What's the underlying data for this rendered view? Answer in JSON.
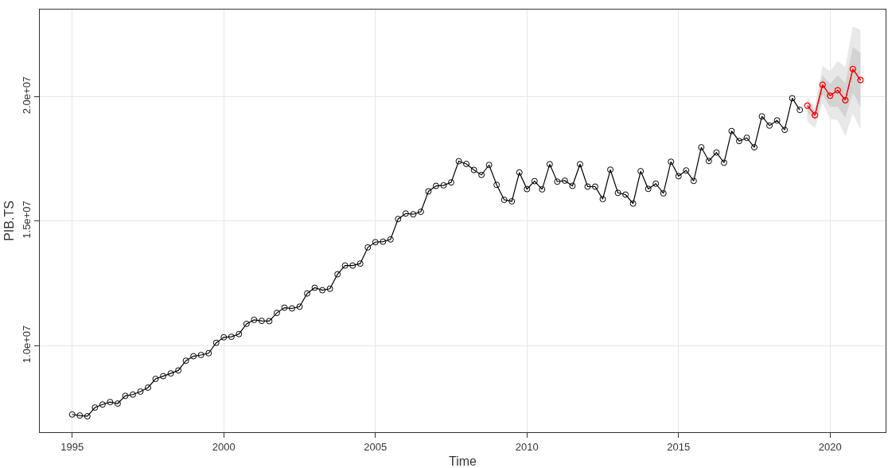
{
  "chart_data": {
    "type": "line",
    "xlabel": "Time",
    "ylabel": "PIB.TS",
    "xlim": [
      1993.93,
      2021.83
    ],
    "ylim": [
      6530000,
      23500000
    ],
    "xticks": [
      1995,
      2000,
      2005,
      2010,
      2015,
      2020
    ],
    "yticks": [
      {
        "value": 10000000,
        "label": "1.0e+07"
      },
      {
        "value": 15000000,
        "label": "1.5e+07"
      },
      {
        "value": 20000000,
        "label": "2.0e+07"
      }
    ],
    "grid": true,
    "marker": "circle",
    "line_style": "solid",
    "series": [
      {
        "color": "#ff0000",
        "x": [
          2019.25,
          2019.5,
          2019.75,
          2020.0,
          2020.25,
          2020.5,
          2020.75,
          2021.0
        ],
        "values": [
          19640000,
          19260000,
          20480000,
          20040000,
          20260000,
          19860000,
          21110000,
          20670000
        ],
        "lower": [
          19000000,
          18740000,
          19750000,
          19110000,
          19050000,
          18420000,
          19320000,
          18680000
        ],
        "upper": [
          19980000,
          19590000,
          21230000,
          21020000,
          21440000,
          21180000,
          22840000,
          22670000
        ]
      },
      {
        "color": "#000000",
        "x": [
          1995.0,
          1995.25,
          1995.5,
          1995.75,
          1996.0,
          1996.25,
          1996.5,
          1996.75,
          1997.0,
          1997.25,
          1997.5,
          1997.75,
          1998.0,
          1998.25,
          1998.5,
          1998.75,
          1999.0,
          1999.25,
          1999.5,
          1999.75,
          2000.0,
          2000.25,
          2000.5,
          2000.75,
          2001.0,
          2001.25,
          2001.5,
          2001.75,
          2002.0,
          2002.25,
          2002.5,
          2002.75,
          2003.0,
          2003.25,
          2003.5,
          2003.75,
          2004.0,
          2004.25,
          2004.5,
          2004.75,
          2005.0,
          2005.25,
          2005.5,
          2005.75,
          2006.0,
          2006.25,
          2006.5,
          2006.75,
          2007.0,
          2007.25,
          2007.5,
          2007.75,
          2008.0,
          2008.25,
          2008.5,
          2008.75,
          2009.0,
          2009.25,
          2009.5,
          2009.75,
          2010.0,
          2010.25,
          2010.5,
          2010.75,
          2011.0,
          2011.25,
          2011.5,
          2011.75,
          2012.0,
          2012.25,
          2012.5,
          2012.75,
          2013.0,
          2013.25,
          2013.5,
          2013.75,
          2014.0,
          2014.25,
          2014.5,
          2014.75,
          2015.0,
          2015.25,
          2015.5,
          2015.75,
          2016.0,
          2016.25,
          2016.5,
          2016.75,
          2017.0,
          2017.25,
          2017.5,
          2017.75,
          2018.0,
          2018.25,
          2018.5,
          2018.75,
          2019.0
        ],
        "values": [
          7240000,
          7200000,
          7170000,
          7520000,
          7640000,
          7740000,
          7680000,
          7990000,
          8040000,
          8160000,
          8320000,
          8670000,
          8780000,
          8890000,
          9010000,
          9400000,
          9580000,
          9630000,
          9700000,
          10120000,
          10340000,
          10360000,
          10470000,
          10880000,
          11040000,
          11000000,
          10990000,
          11320000,
          11530000,
          11500000,
          11570000,
          12100000,
          12330000,
          12230000,
          12290000,
          12870000,
          13220000,
          13220000,
          13300000,
          13950000,
          14160000,
          14180000,
          14270000,
          15090000,
          15310000,
          15280000,
          15380000,
          16200000,
          16420000,
          16440000,
          16560000,
          17410000,
          17300000,
          17060000,
          16860000,
          17260000,
          16460000,
          15860000,
          15800000,
          16960000,
          16290000,
          16610000,
          16280000,
          17290000,
          16590000,
          16630000,
          16420000,
          17290000,
          16390000,
          16390000,
          15890000,
          17070000,
          16140000,
          16070000,
          15710000,
          17010000,
          16300000,
          16510000,
          16120000,
          17390000,
          16810000,
          17040000,
          16620000,
          17970000,
          17420000,
          17760000,
          17350000,
          18620000,
          18220000,
          18350000,
          17970000,
          19210000,
          18840000,
          19050000,
          18670000,
          19940000,
          19470000
        ]
      },
      {
        "color": "#ff0000",
        "x": [
          2019.25,
          2019.5,
          2019.75,
          2020.0,
          2020.25,
          2020.5,
          2020.75,
          2021.0
        ],
        "values": [
          19640000,
          19260000,
          20480000,
          20040000,
          20260000,
          19860000,
          21110000,
          20670000
        ],
        "lower": [
          19370000,
          19050000,
          20090000,
          19590000,
          19590000,
          19160000,
          20170000,
          19590000
        ],
        "upper": [
          19850000,
          19430000,
          20860000,
          20510000,
          20860000,
          20540000,
          22000000,
          21760000
        ]
      }
    ]
  }
}
